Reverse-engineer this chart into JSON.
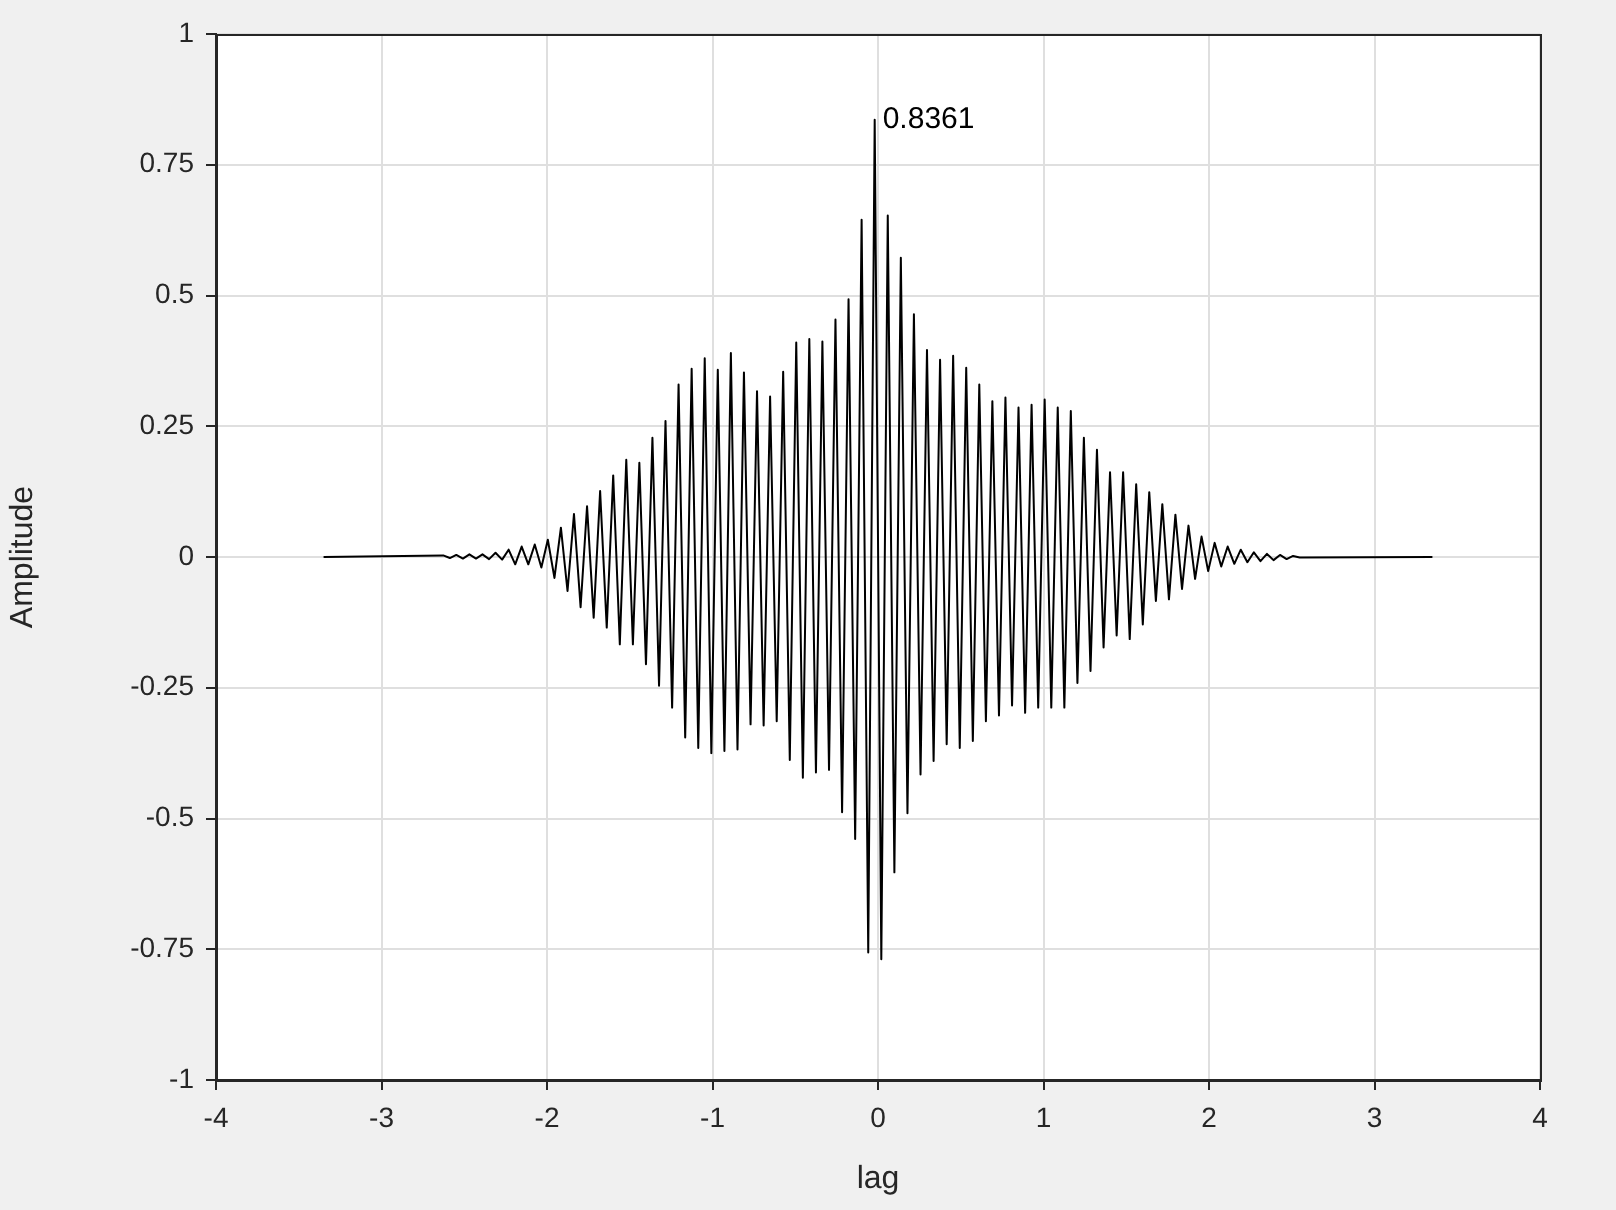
{
  "chart_data": {
    "type": "line",
    "xlabel": "lag",
    "ylabel": "Amplitude",
    "xlim": [
      -4,
      4
    ],
    "xticks": [
      -4,
      -3,
      -2,
      -1,
      0,
      1,
      2,
      3,
      4
    ],
    "ylim": [
      -1,
      1
    ],
    "yticks": [
      -1,
      -0.75,
      -0.5,
      -0.25,
      0,
      0.25,
      0.5,
      0.75,
      1
    ],
    "grid": true,
    "annotations": [
      {
        "text": "0.8361",
        "x": -0.02,
        "y": 0.8361
      }
    ],
    "series": [
      {
        "color": "#000000",
        "x": [
          -3.35,
          -2.627,
          -2.587,
          -2.548,
          -2.508,
          -2.469,
          -2.429,
          -2.39,
          -2.35,
          -2.311,
          -2.271,
          -2.232,
          -2.192,
          -2.153,
          -2.113,
          -2.074,
          -2.034,
          -1.995,
          -1.955,
          -1.916,
          -1.876,
          -1.837,
          -1.797,
          -1.758,
          -1.718,
          -1.679,
          -1.639,
          -1.6,
          -1.56,
          -1.521,
          -1.481,
          -1.442,
          -1.402,
          -1.363,
          -1.323,
          -1.284,
          -1.244,
          -1.205,
          -1.165,
          -1.126,
          -1.086,
          -1.047,
          -1.007,
          -0.968,
          -0.928,
          -0.889,
          -0.849,
          -0.81,
          -0.77,
          -0.731,
          -0.691,
          -0.652,
          -0.612,
          -0.573,
          -0.533,
          -0.494,
          -0.454,
          -0.415,
          -0.375,
          -0.336,
          -0.296,
          -0.257,
          -0.217,
          -0.178,
          -0.138,
          -0.099,
          -0.059,
          -0.02,
          0.02,
          0.059,
          0.099,
          0.138,
          0.178,
          0.217,
          0.257,
          0.296,
          0.336,
          0.375,
          0.415,
          0.454,
          0.494,
          0.533,
          0.573,
          0.612,
          0.652,
          0.691,
          0.731,
          0.77,
          0.81,
          0.849,
          0.889,
          0.928,
          0.968,
          1.007,
          1.047,
          1.086,
          1.126,
          1.165,
          1.205,
          1.244,
          1.284,
          1.323,
          1.363,
          1.402,
          1.442,
          1.481,
          1.521,
          1.56,
          1.6,
          1.639,
          1.679,
          1.718,
          1.758,
          1.797,
          1.837,
          1.876,
          1.916,
          1.955,
          1.995,
          2.034,
          2.074,
          2.113,
          2.153,
          2.192,
          2.232,
          2.271,
          2.311,
          2.35,
          2.39,
          2.429,
          2.469,
          2.508,
          2.548,
          3.35
        ],
        "values": [
          0,
          0.003,
          -0.002,
          0.004,
          -0.003,
          0.005,
          -0.003,
          0.005,
          -0.004,
          0.008,
          -0.005,
          0.014,
          -0.014,
          0.02,
          -0.014,
          0.024,
          -0.02,
          0.033,
          -0.04,
          0.056,
          -0.065,
          0.082,
          -0.096,
          0.097,
          -0.116,
          0.126,
          -0.135,
          0.156,
          -0.167,
          0.186,
          -0.167,
          0.18,
          -0.205,
          0.228,
          -0.246,
          0.26,
          -0.288,
          0.33,
          -0.345,
          0.36,
          -0.365,
          0.38,
          -0.375,
          0.358,
          -0.371,
          0.39,
          -0.368,
          0.353,
          -0.32,
          0.317,
          -0.322,
          0.307,
          -0.314,
          0.354,
          -0.388,
          0.41,
          -0.422,
          0.417,
          -0.412,
          0.412,
          -0.407,
          0.454,
          -0.488,
          0.493,
          -0.539,
          0.645,
          -0.756,
          0.8361,
          -0.769,
          0.653,
          -0.603,
          0.572,
          -0.49,
          0.464,
          -0.416,
          0.396,
          -0.39,
          0.377,
          -0.358,
          0.385,
          -0.365,
          0.362,
          -0.352,
          0.33,
          -0.314,
          0.298,
          -0.303,
          0.305,
          -0.284,
          0.286,
          -0.298,
          0.291,
          -0.288,
          0.301,
          -0.288,
          0.286,
          -0.288,
          0.279,
          -0.241,
          0.228,
          -0.218,
          0.205,
          -0.173,
          0.162,
          -0.15,
          0.162,
          -0.157,
          0.139,
          -0.129,
          0.124,
          -0.084,
          0.101,
          -0.081,
          0.081,
          -0.061,
          0.06,
          -0.042,
          0.039,
          -0.027,
          0.027,
          -0.018,
          0.02,
          -0.013,
          0.014,
          -0.01,
          0.009,
          -0.008,
          0.006,
          -0.006,
          0.004,
          -0.004,
          0.002,
          -0.001,
          0
        ]
      }
    ]
  }
}
